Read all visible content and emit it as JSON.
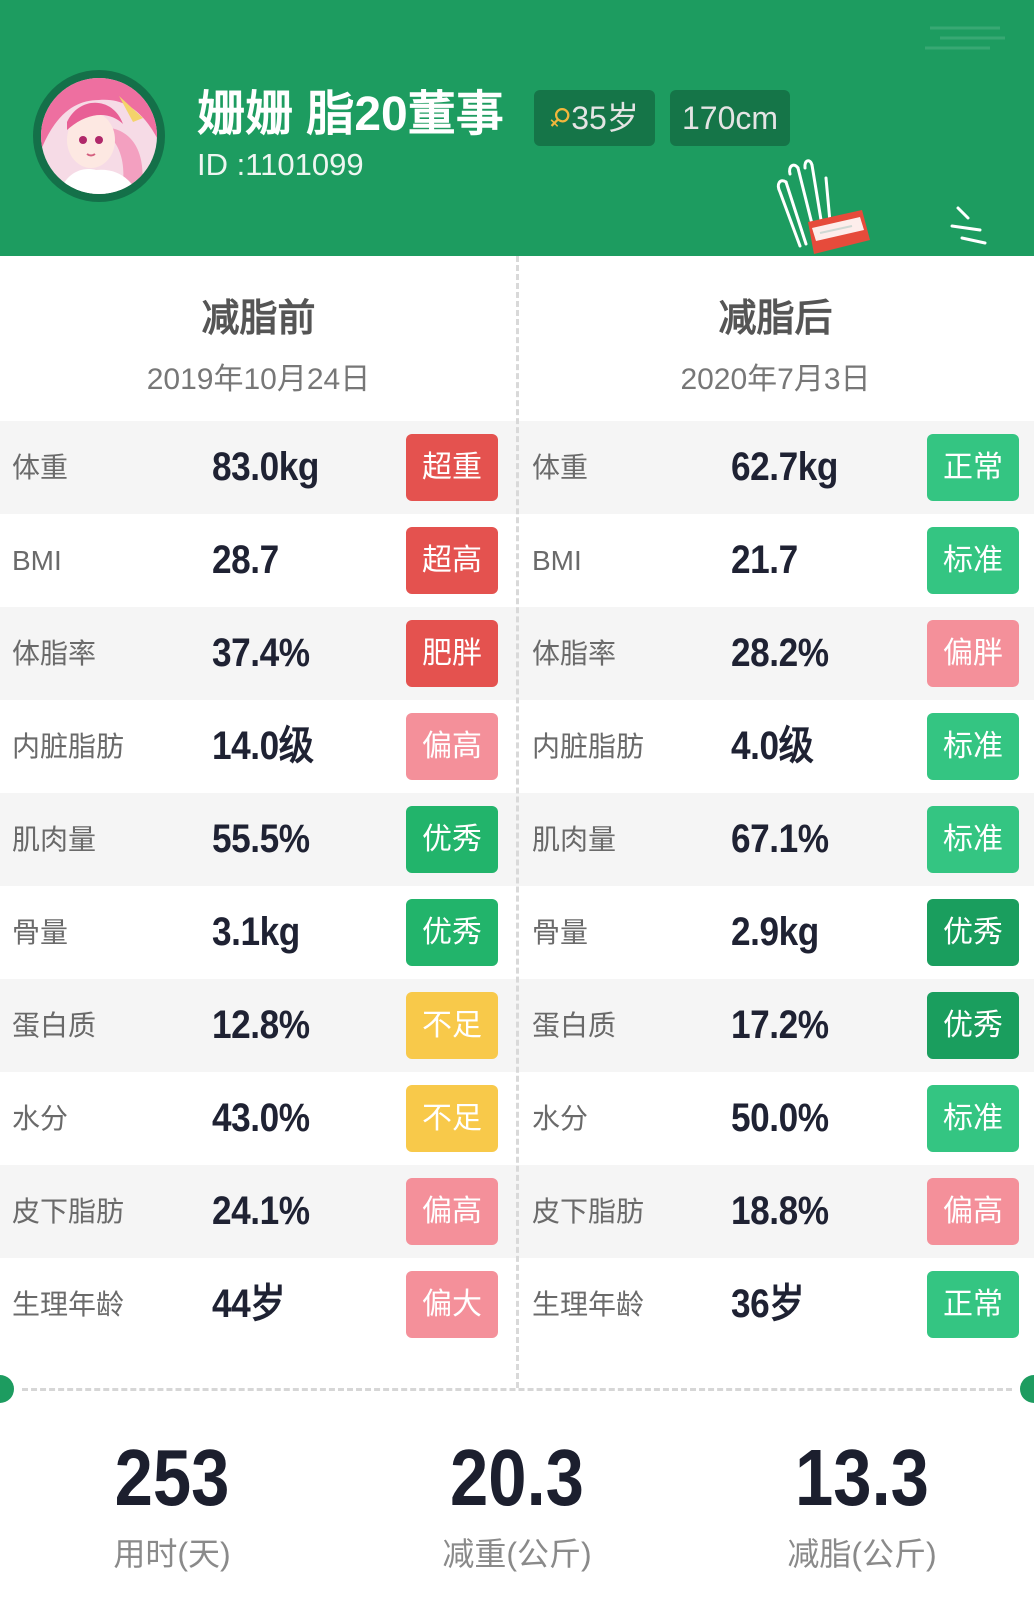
{
  "colors": {
    "header_bg": "#1d9c60",
    "accent": "#1d9c60"
  },
  "header": {
    "name": "姗姗 脂20董事",
    "gender_icon": "female-icon",
    "age": "35岁",
    "height": "170cm",
    "id_text": "ID :1101099"
  },
  "before": {
    "title": "减脂前",
    "date": "2019年10月24日",
    "rows": [
      {
        "label": "体重",
        "value": "83.0kg",
        "badge": "超重",
        "badge_color": "#e4524f"
      },
      {
        "label": "BMI",
        "value": "28.7",
        "badge": "超高",
        "badge_color": "#e4524f"
      },
      {
        "label": "体脂率",
        "value": "37.4%",
        "badge": "肥胖",
        "badge_color": "#e4524f"
      },
      {
        "label": "内脏脂肪",
        "value": "14.0级",
        "badge": "偏高",
        "badge_color": "#f4909a"
      },
      {
        "label": "肌肉量",
        "value": "55.5%",
        "badge": "优秀",
        "badge_color": "#22b46b"
      },
      {
        "label": "骨量",
        "value": "3.1kg",
        "badge": "优秀",
        "badge_color": "#22b46b"
      },
      {
        "label": "蛋白质",
        "value": "12.8%",
        "badge": "不足",
        "badge_color": "#f8c94a"
      },
      {
        "label": "水分",
        "value": "43.0%",
        "badge": "不足",
        "badge_color": "#f8c94a"
      },
      {
        "label": "皮下脂肪",
        "value": "24.1%",
        "badge": "偏高",
        "badge_color": "#f4909a"
      },
      {
        "label": "生理年龄",
        "value": "44岁",
        "badge": "偏大",
        "badge_color": "#f4909a"
      }
    ]
  },
  "after": {
    "title": "减脂后",
    "date": "2020年7月3日",
    "rows": [
      {
        "label": "体重",
        "value": "62.7kg",
        "badge": "正常",
        "badge_color": "#34c582"
      },
      {
        "label": "BMI",
        "value": "21.7",
        "badge": "标准",
        "badge_color": "#34c582"
      },
      {
        "label": "体脂率",
        "value": "28.2%",
        "badge": "偏胖",
        "badge_color": "#f4909a"
      },
      {
        "label": "内脏脂肪",
        "value": "4.0级",
        "badge": "标准",
        "badge_color": "#34c582"
      },
      {
        "label": "肌肉量",
        "value": "67.1%",
        "badge": "标准",
        "badge_color": "#34c582"
      },
      {
        "label": "骨量",
        "value": "2.9kg",
        "badge": "优秀",
        "badge_color": "#1a9e5e"
      },
      {
        "label": "蛋白质",
        "value": "17.2%",
        "badge": "优秀",
        "badge_color": "#1a9e5e"
      },
      {
        "label": "水分",
        "value": "50.0%",
        "badge": "标准",
        "badge_color": "#34c582"
      },
      {
        "label": "皮下脂肪",
        "value": "18.8%",
        "badge": "偏高",
        "badge_color": "#f4909a"
      },
      {
        "label": "生理年龄",
        "value": "36岁",
        "badge": "正常",
        "badge_color": "#34c582"
      }
    ]
  },
  "summary": [
    {
      "value": "253",
      "label": "用时(天)"
    },
    {
      "value": "20.3",
      "label": "减重(公斤)"
    },
    {
      "value": "13.3",
      "label": "减脂(公斤)"
    }
  ]
}
